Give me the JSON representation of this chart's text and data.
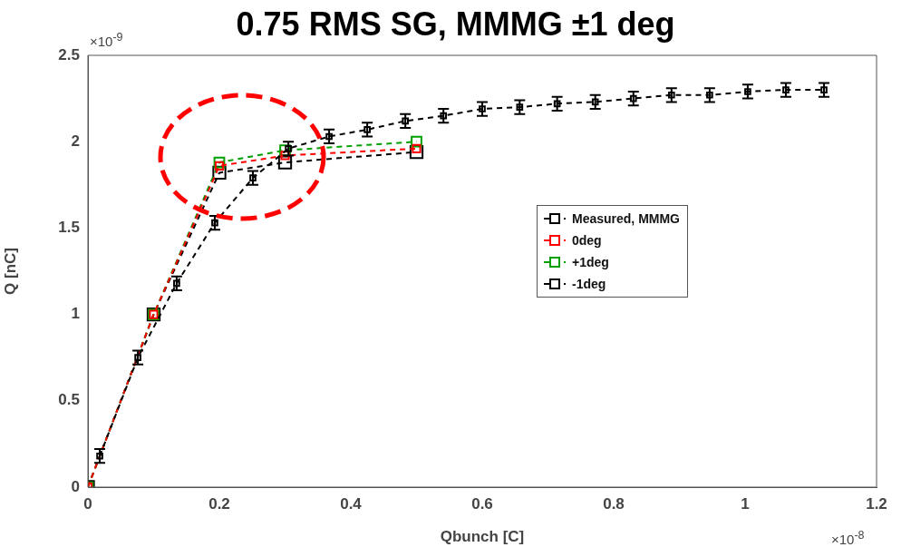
{
  "chart_data": {
    "type": "line",
    "title": "0.75 RMS SG, MMMG ±1 deg",
    "xlabel": "Qbunch [C]",
    "ylabel": "Q [nC]",
    "annotations": [
      "×10$^{-9}$",
      "×10$^{-8}$"
    ],
    "xlim": [
      0,
      1.2
    ],
    "xticks": [
      0,
      0.2,
      0.4,
      0.6,
      0.8,
      1,
      1.2
    ],
    "ylim": [
      0,
      2.5
    ],
    "yticks": [
      0,
      0.5,
      1,
      1.5,
      2,
      2.5
    ],
    "grid": false,
    "legend": "right",
    "marker": "square",
    "line_style": "dashed",
    "series": [
      {
        "name": "Measured, MMMG",
        "color": "#000000",
        "x": [
          0.018,
          0.076,
          0.135,
          0.193,
          0.251,
          0.305,
          0.367,
          0.425,
          0.483,
          0.541,
          0.6,
          0.657,
          0.714,
          0.772,
          0.83,
          0.888,
          0.946,
          1.004,
          1.062,
          1.12
        ],
        "values": [
          0.18,
          0.75,
          1.18,
          1.53,
          1.79,
          1.96,
          2.03,
          2.07,
          2.12,
          2.15,
          2.19,
          2.2,
          2.22,
          2.23,
          2.25,
          2.27,
          2.27,
          2.29,
          2.3,
          2.3
        ],
        "errors": [
          0.04,
          0.04,
          0.04,
          0.04,
          0.04,
          0.04,
          0.04,
          0.04,
          0.04,
          0.04,
          0.04,
          0.04,
          0.04,
          0.04,
          0.04,
          0.04,
          0.04,
          0.04,
          0.04,
          0.04
        ]
      },
      {
        "name": "0deg",
        "color": "#ff0000",
        "x": [
          0,
          0.1,
          0.2,
          0.3,
          0.5
        ],
        "values": [
          0,
          1.0,
          1.86,
          1.92,
          1.96
        ]
      },
      {
        "name": "+1deg",
        "color": "#00a000",
        "x": [
          0,
          0.1,
          0.2,
          0.3,
          0.5
        ],
        "values": [
          0,
          1.0,
          1.88,
          1.95,
          2.0
        ]
      },
      {
        "name": "-1deg",
        "color": "#000000",
        "x": [
          0,
          0.1,
          0.2,
          0.3,
          0.5
        ],
        "values": [
          0,
          1.0,
          1.82,
          1.88,
          1.94
        ]
      }
    ]
  }
}
